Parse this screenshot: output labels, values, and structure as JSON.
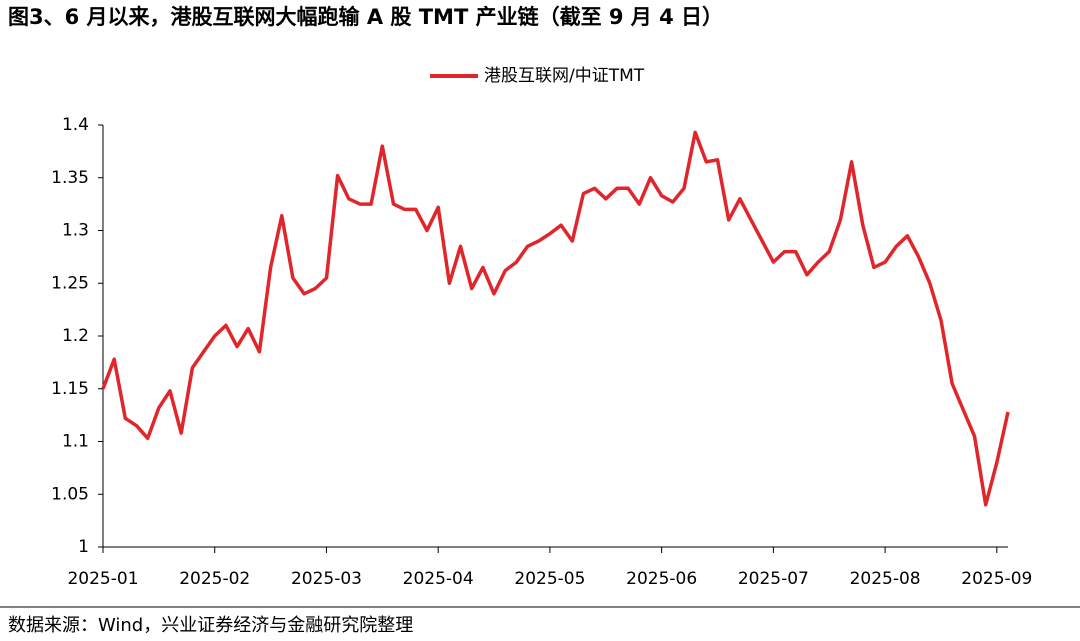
{
  "chart_data": {
    "type": "line",
    "title": "图3、6 月以来，港股互联网大幅跑输 A 股 TMT 产业链（截至 9 月 4 日）",
    "source": "数据来源：Wind，兴业证券经济与金融研究院整理",
    "categories": [
      "2025-01",
      null,
      null,
      null,
      null,
      null,
      null,
      null,
      null,
      null,
      "2025-02",
      null,
      null,
      null,
      null,
      null,
      null,
      null,
      null,
      null,
      "2025-03",
      null,
      null,
      null,
      null,
      null,
      null,
      null,
      null,
      null,
      "2025-04",
      null,
      null,
      null,
      null,
      null,
      null,
      null,
      null,
      null,
      "2025-05",
      null,
      null,
      null,
      null,
      null,
      null,
      null,
      null,
      null,
      "2025-06",
      null,
      null,
      null,
      null,
      null,
      null,
      null,
      null,
      null,
      "2025-07",
      null,
      null,
      null,
      null,
      null,
      null,
      null,
      null,
      null,
      "2025-08",
      null,
      null,
      null,
      null,
      null,
      null,
      null,
      null,
      null,
      "2025-09",
      null
    ],
    "series": [
      {
        "name": "港股互联网/中证TMT",
        "color": "#e0262b",
        "values": [
          1.15,
          1.178,
          1.122,
          1.115,
          1.103,
          1.132,
          1.148,
          1.108,
          1.17,
          1.185,
          1.2,
          1.21,
          1.19,
          1.207,
          1.185,
          1.265,
          1.314,
          1.255,
          1.24,
          1.245,
          1.255,
          1.352,
          1.33,
          1.325,
          1.325,
          1.38,
          1.325,
          1.32,
          1.32,
          1.3,
          1.322,
          1.25,
          1.285,
          1.245,
          1.265,
          1.24,
          1.262,
          1.27,
          1.285,
          1.29,
          1.297,
          1.305,
          1.29,
          1.335,
          1.34,
          1.33,
          1.34,
          1.34,
          1.325,
          1.35,
          1.333,
          1.327,
          1.34,
          1.393,
          1.365,
          1.367,
          1.31,
          1.33,
          1.31,
          1.29,
          1.27,
          1.28,
          1.28,
          1.258,
          1.27,
          1.28,
          1.31,
          1.365,
          1.305,
          1.265,
          1.27,
          1.285,
          1.295,
          1.275,
          1.25,
          1.215,
          1.155,
          1.13,
          1.105,
          1.04,
          1.08,
          1.128
        ]
      }
    ],
    "ylim": [
      1,
      1.4
    ],
    "yticks": [
      1,
      1.05,
      1.1,
      1.15,
      1.2,
      1.25,
      1.3,
      1.35,
      1.4
    ],
    "legend": "top"
  }
}
